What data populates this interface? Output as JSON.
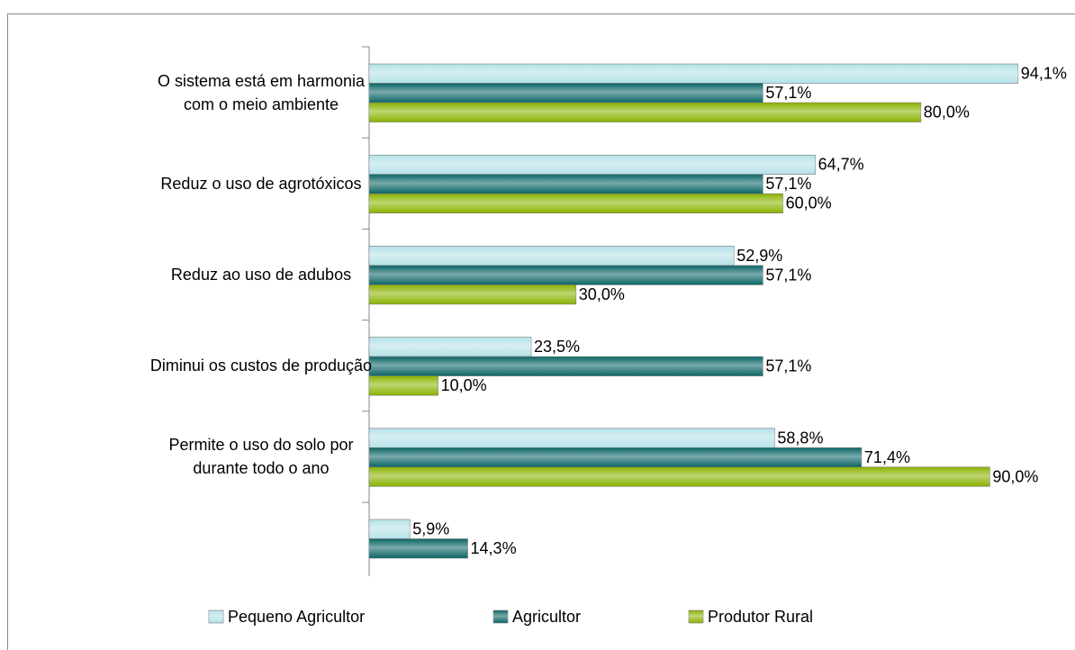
{
  "chart_data": {
    "type": "hbar",
    "categories": [
      "O sistema está em harmonia com o meio ambiente",
      "Reduz o uso de agrotóxicos",
      "Reduz ao uso de adubos",
      "Diminui os custos de produção",
      "Permite o uso do solo por durante todo o ano",
      null
    ],
    "series": [
      {
        "name": "Pequeno Agricultor",
        "color": "#b4e2e8",
        "values": [
          94.1,
          64.7,
          52.9,
          23.5,
          58.8,
          5.9
        ],
        "value_labels": [
          "94,1%",
          "64,7%",
          "52,9%",
          "23,5%",
          "58,8%",
          "5,9%"
        ]
      },
      {
        "name": "Agricultor",
        "color": "#0b6565",
        "values": [
          57.1,
          57.1,
          57.1,
          57.1,
          71.4,
          14.3
        ],
        "value_labels": [
          "57,1%",
          "57,1%",
          "57,1%",
          "57,1%",
          "71,4%",
          "14,3%"
        ]
      },
      {
        "name": "Produtor Rural",
        "color": "#8ab300",
        "values": [
          80.0,
          60.0,
          30.0,
          10.0,
          90.0,
          null
        ],
        "value_labels": [
          "80,0%",
          "60,0%",
          "30,0%",
          "10,0%",
          "90,0%",
          null
        ]
      }
    ],
    "xlim": [
      0,
      100
    ],
    "legend": "bottom"
  }
}
